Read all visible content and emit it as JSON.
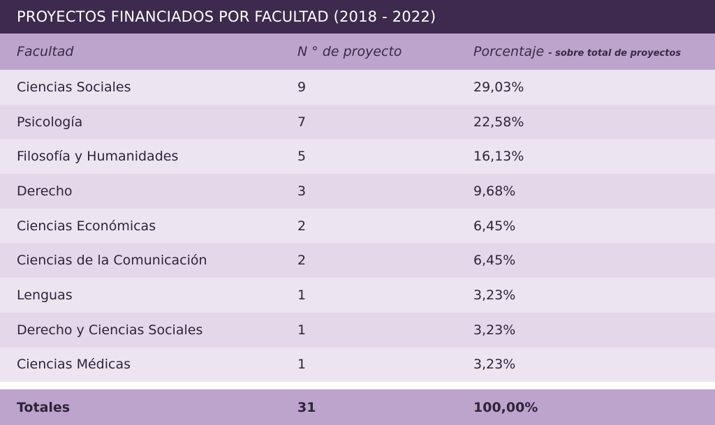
{
  "title": "PROYECTOS FINANCIADOS POR FACULTAD (2018 - 2022)",
  "header": {
    "facultad": "Facultad",
    "n_proyecto": "N ° de proyecto",
    "porcentaje": "Porcentaje",
    "porcentaje_sub": "- sobre total de proyectos"
  },
  "rows": [
    {
      "facultad": "Ciencias Sociales",
      "n": "9",
      "pct": "29,03%"
    },
    {
      "facultad": "Psicología",
      "n": "7",
      "pct": "22,58%"
    },
    {
      "facultad": "Filosofía y Humanidades",
      "n": "5",
      "pct": "16,13%"
    },
    {
      "facultad": "Derecho",
      "n": "3",
      "pct": "9,68%"
    },
    {
      "facultad": "Ciencias Económicas",
      "n": "2",
      "pct": "6,45%"
    },
    {
      "facultad": "Ciencias de la Comunicación",
      "n": "2",
      "pct": "6,45%"
    },
    {
      "facultad": "Lenguas",
      "n": "1",
      "pct": "3,23%"
    },
    {
      "facultad": "Derecho y Ciencias Sociales",
      "n": "1",
      "pct": "3,23%"
    },
    {
      "facultad": "Ciencias Médicas",
      "n": "1",
      "pct": "3,23%"
    }
  ],
  "totals": {
    "label": "Totales",
    "n": "31",
    "pct": "100,00%"
  },
  "colors": {
    "title_bg": "#3d2a4e",
    "header_bg": "#bca4cc",
    "row_light": "#ede4f2",
    "row_dark": "#e5d7ea"
  },
  "chart_data": {
    "type": "table",
    "title": "PROYECTOS FINANCIADOS POR FACULTAD (2018 - 2022)",
    "columns": [
      "Facultad",
      "N ° de proyecto",
      "Porcentaje - sobre total de proyectos"
    ],
    "categories": [
      "Ciencias Sociales",
      "Psicología",
      "Filosofía y Humanidades",
      "Derecho",
      "Ciencias Económicas",
      "Ciencias de la Comunicación",
      "Lenguas",
      "Derecho y Ciencias Sociales",
      "Ciencias Médicas"
    ],
    "series": [
      {
        "name": "N ° de proyecto",
        "values": [
          9,
          7,
          5,
          3,
          2,
          2,
          1,
          1,
          1
        ]
      },
      {
        "name": "Porcentaje",
        "values": [
          29.03,
          22.58,
          16.13,
          9.68,
          6.45,
          6.45,
          3.23,
          3.23,
          3.23
        ]
      }
    ],
    "totals": {
      "n": 31,
      "pct": 100.0
    }
  }
}
